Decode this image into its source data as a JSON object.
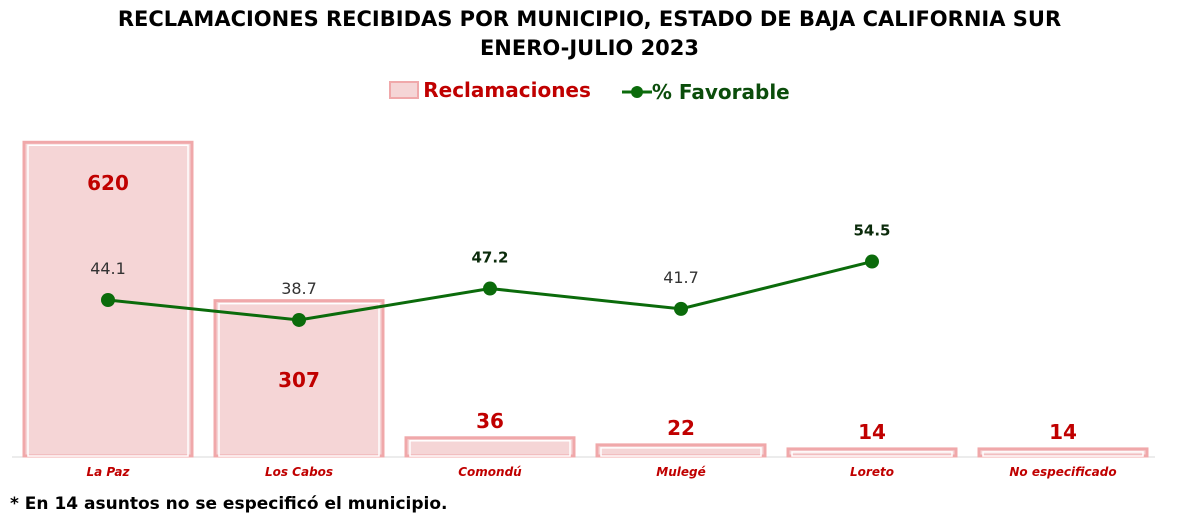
{
  "chart_data": {
    "type": "bar",
    "title": "RECLAMACIONES RECIBIDAS POR MUNICIPIO, ESTADO DE BAJA CALIFORNIA SUR",
    "subtitle": "ENERO-JULIO 2023",
    "categories": [
      "La Paz",
      "Los Cabos",
      "Comondú",
      "Mulegé",
      "Loreto",
      "No especificado"
    ],
    "series": [
      {
        "name": "Reclamaciones",
        "type": "bar",
        "values": [
          620,
          307,
          36,
          22,
          14,
          14
        ],
        "labels": [
          "620",
          "307",
          "36",
          "22",
          "14",
          "14"
        ]
      },
      {
        "name": "% Favorable",
        "type": "line",
        "values": [
          44.1,
          38.7,
          47.2,
          41.7,
          54.5,
          null
        ],
        "labels": [
          "44.1",
          "38.7",
          "47.2",
          "41.7",
          "54.5",
          ""
        ]
      }
    ],
    "legend": {
      "position": "top-center",
      "entries": [
        "Reclamaciones",
        "% Favorable"
      ]
    },
    "grid": false,
    "xlabel": "",
    "ylabel": "",
    "colors": {
      "bar_fill": "#f5d5d6",
      "bar_edge": "#f0a8aa",
      "bar_label": "#c00000",
      "line": "#0b6b0b",
      "line_label": "#333333",
      "legend_line": "#0b4d0b"
    }
  },
  "footnote": "* En 14 asuntos no se especificó el municipio."
}
